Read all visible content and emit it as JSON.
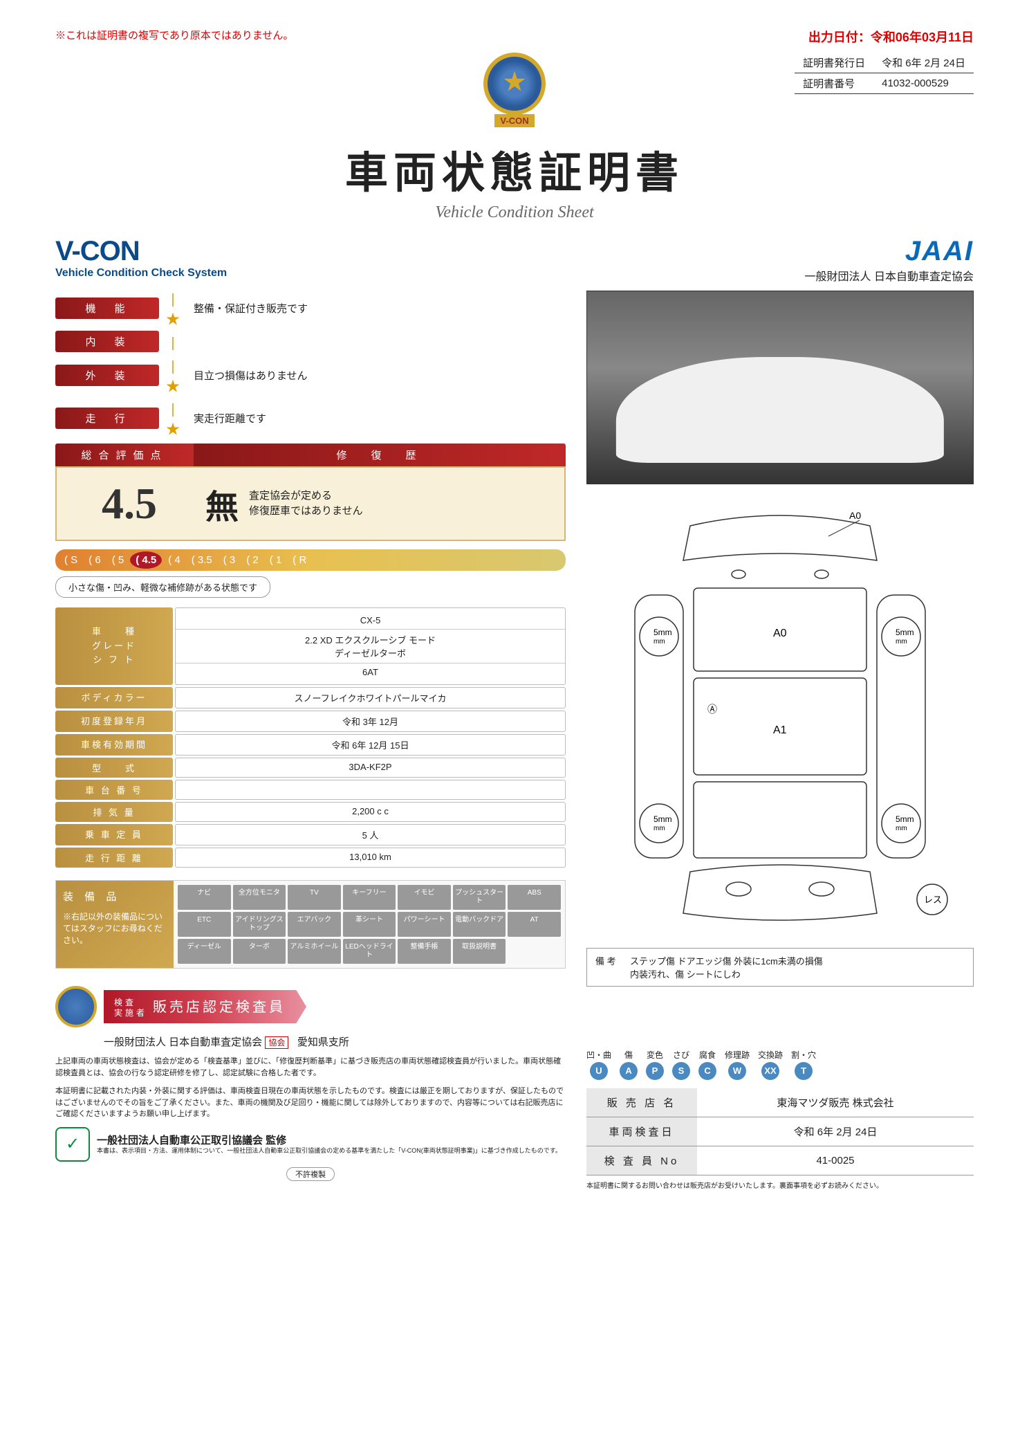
{
  "copy_note": "※これは証明書の複写であり原本ではありません。",
  "output_date": "出力日付：令和06年03月11日",
  "cert": {
    "issue_label": "証明書発行日",
    "issue_date": "令和 6年 2月 24日",
    "number_label": "証明書番号",
    "number": "41032-000529"
  },
  "badge_label": "V-CON",
  "title": "車両状態証明書",
  "subtitle": "Vehicle Condition Sheet",
  "vcon": {
    "brand": "V-CON",
    "sub": "Vehicle Condition Check System"
  },
  "jaai": {
    "logo": "JAAI",
    "sub": "一般財団法人 日本自動車査定協会"
  },
  "ratings": [
    {
      "label": "機　能",
      "star": true,
      "text": "整備・保証付き販売です"
    },
    {
      "label": "内　装",
      "star": false,
      "text": ""
    },
    {
      "label": "外　装",
      "star": true,
      "text": "目立つ損傷はありません"
    },
    {
      "label": "走　行",
      "star": true,
      "text": "実走行距離です"
    }
  ],
  "score_header": {
    "left": "総合評価点",
    "right": "修　復　歴"
  },
  "score": "4.5",
  "repair": "無",
  "repair_text": "査定協会が定める\n修復歴車ではありません",
  "scale": [
    "S",
    "6",
    "5",
    "4.5",
    "4",
    "3.5",
    "3",
    "2",
    "1",
    "R"
  ],
  "scale_active": "4.5",
  "scale_desc": "小さな傷・凹み、軽微な補修跡がある状態です",
  "spec_multi": {
    "labels": [
      "車　　種",
      "グレード",
      "シ フ ト"
    ],
    "values": [
      "CX-5",
      "2.2 XD エクスクルーシブ モード\nディーゼルターボ",
      "6AT"
    ]
  },
  "specs": [
    {
      "label": "ボディカラー",
      "value": "スノーフレイクホワイトパールマイカ"
    },
    {
      "label": "初度登録年月",
      "value": "令和 3年 12月"
    },
    {
      "label": "車検有効期間",
      "value": "令和 6年 12月 15日"
    },
    {
      "label": "型　　式",
      "value": "3DA-KF2P"
    },
    {
      "label": "車 台 番 号",
      "value": ""
    },
    {
      "label": "排 気 量",
      "value": "2,200 c c"
    },
    {
      "label": "乗 車 定 員",
      "value": "5 人"
    },
    {
      "label": "走 行 距 離",
      "value": "13,010 km"
    }
  ],
  "equip": {
    "title": "装 備 品",
    "note": "※右記以外の装備品についてはスタッフにお尋ねください。",
    "items": [
      "ナビ",
      "全方位モニタ",
      "TV",
      "キーフリー",
      "イモビ",
      "プッシュスタート",
      "ABS",
      "ETC",
      "アイドリングストップ",
      "エアバック",
      "革シート",
      "パワーシート",
      "電動バックドア",
      "AT",
      "ディーゼル",
      "ターボ",
      "アルミホイール",
      "LEDヘッドライト",
      "整備手帳",
      "取扱説明書"
    ]
  },
  "diagram": {
    "front_label": "A0",
    "roof_label": "A0",
    "hood_label": "A1",
    "side_a": "A",
    "wheel_marks": [
      "5mm",
      "5mm",
      "5mm",
      "5mm"
    ],
    "note_circle": "レス"
  },
  "remarks": {
    "label": "備 考",
    "text": "ステップ傷 ドアエッジ傷 外装に1cm未満の損傷\n内装汚れ、傷 シートにしわ"
  },
  "inspector": {
    "small": "検査\n実施者",
    "title": "販売店認定検査員",
    "org": "一般財団法人 日本自動車査定協会",
    "stamp": "協会",
    "branch": "愛知県支所"
  },
  "fine_print1": "上記車両の車両状態検査は、協会が定める「検査基準」並びに、「修復歴判断基準」に基づき販売店の車両状態確認検査員が行いました。車両状態確認検査員とは、協会の行なう認定研修を修了し、認定試験に合格した者です。",
  "fine_print2": "本証明書に記載された内装・外装に関する評価は、車両検査日現在の車両状態を示したものです。検査には厳正を期しておりますが、保証したものではございませんのでその旨をご了承ください。また、車両の機関及び足回り・機能に関しては除外しておりますので、内容等については右記販売店にご確認くださいますようお願い申し上げます。",
  "supervise": {
    "title": "一般社団法人自動車公正取引協議会 監修",
    "note": "本書は、表示項目・方法、運用体制について、一般社団法人自動車公正取引協議会の定める基準を満たした「V-CON(車両状態証明事業)」に基づき作成したものです。"
  },
  "legend": [
    {
      "t": "凹・曲",
      "c": "U"
    },
    {
      "t": "傷",
      "c": "A"
    },
    {
      "t": "変色",
      "c": "P"
    },
    {
      "t": "さび",
      "c": "S"
    },
    {
      "t": "腐食",
      "c": "C"
    },
    {
      "t": "修理跡",
      "c": "W"
    },
    {
      "t": "交換跡",
      "c": "XX"
    },
    {
      "t": "割・穴",
      "c": "T"
    }
  ],
  "dealer": [
    {
      "label": "販 売 店 名",
      "value": "東海マツダ販売 株式会社"
    },
    {
      "label": "車両検査日",
      "value": "令和 6年 2月 24日"
    },
    {
      "label": "検 査 員 No",
      "value": "41-0025"
    }
  ],
  "no_copy": "不許複製",
  "bottom_note": "本証明書に関するお問い合わせは販売店がお受けいたします。裏面事項を必ずお読みください。"
}
